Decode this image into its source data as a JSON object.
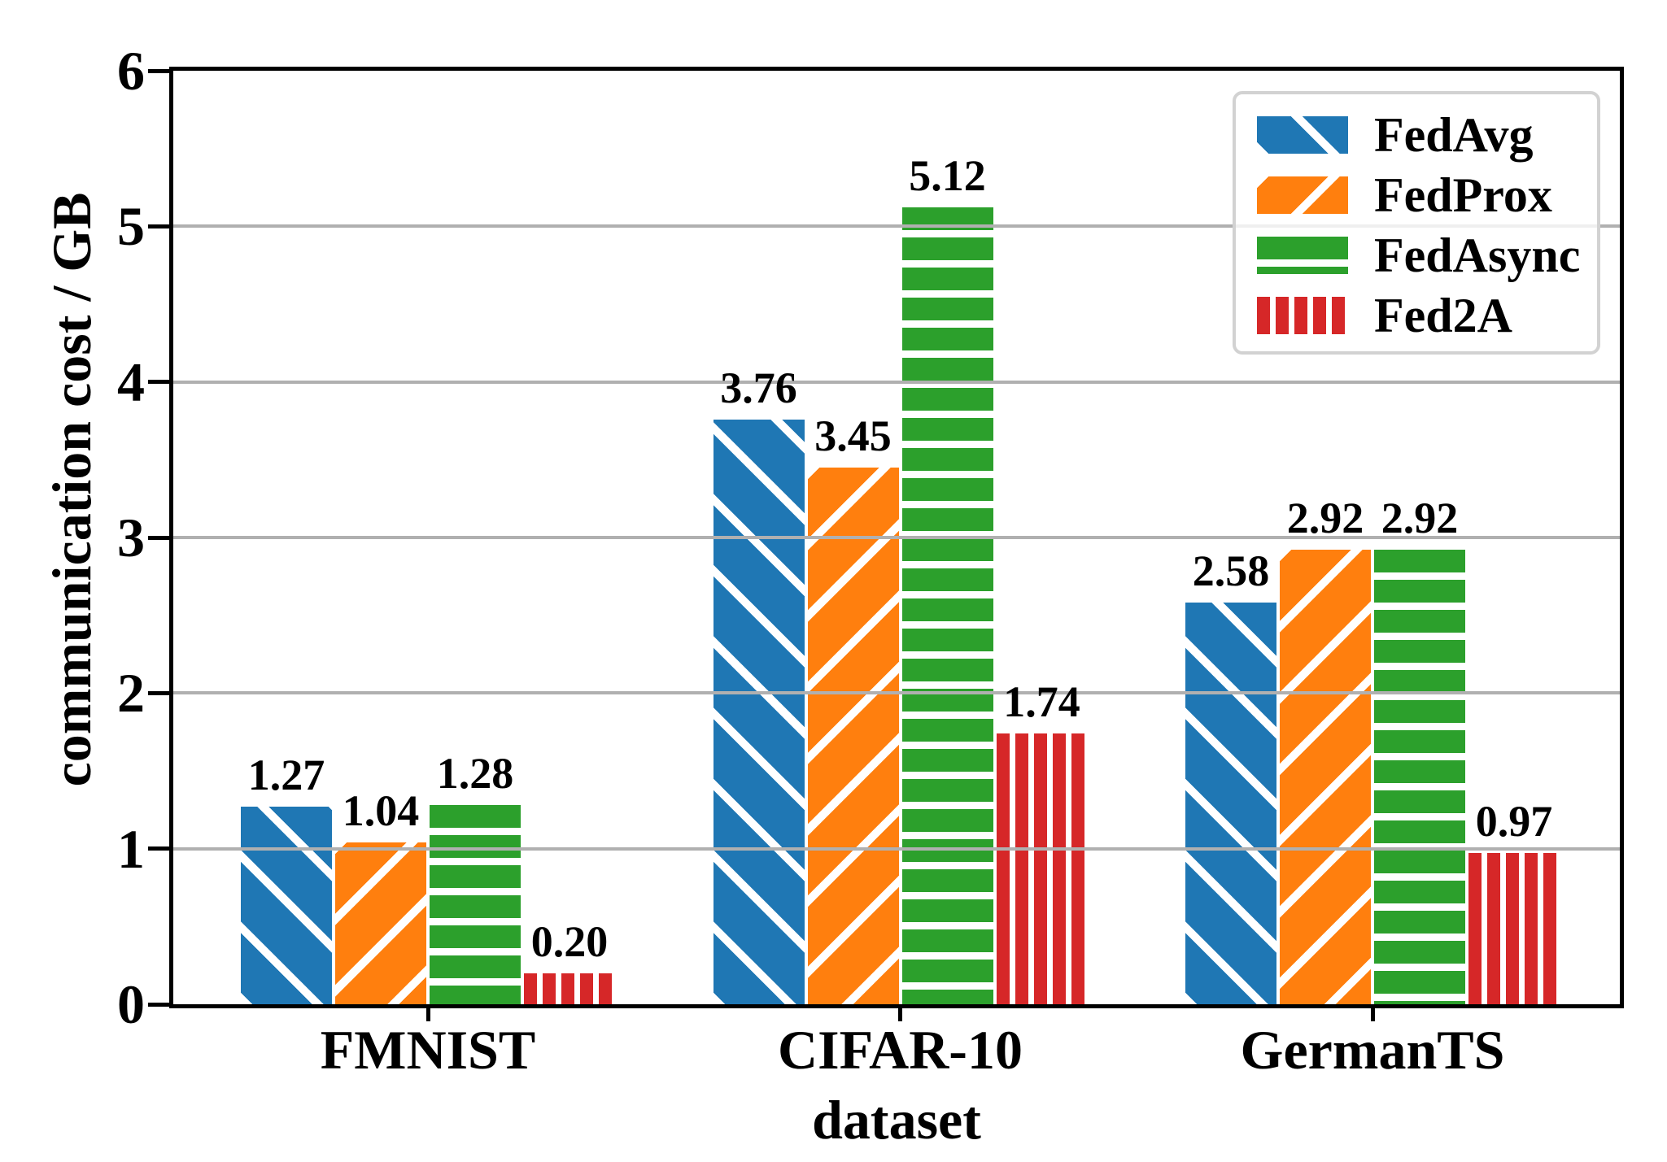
{
  "figure": {
    "xlabel": "dataset",
    "ylabel": "communication cost / GB"
  },
  "chart_data": {
    "type": "bar",
    "title": "",
    "xlabel": "dataset",
    "ylabel": "communication cost / GB",
    "categories": [
      "FMNIST",
      "CIFAR-10",
      "GermanTS"
    ],
    "series": [
      {
        "name": "FedAvg",
        "color": "#1f77b4",
        "hatch": "\\",
        "values": [
          1.27,
          3.76,
          2.58
        ]
      },
      {
        "name": "FedProx",
        "color": "#ff7f0e",
        "hatch": "/",
        "values": [
          1.04,
          3.45,
          2.92
        ]
      },
      {
        "name": "FedAsync",
        "color": "#2ca02c",
        "hatch": "-",
        "values": [
          1.28,
          5.12,
          2.92
        ]
      },
      {
        "name": "Fed2A",
        "color": "#d62728",
        "hatch": "|",
        "values": [
          0.2,
          1.74,
          0.97
        ]
      }
    ],
    "bar_value_labels": [
      [
        "1.27",
        "3.76",
        "2.58"
      ],
      [
        "1.04",
        "3.45",
        "2.92"
      ],
      [
        "1.28",
        "5.12",
        "2.92"
      ],
      [
        "0.20",
        "1.74",
        "0.97"
      ]
    ],
    "ylim": [
      0,
      6
    ],
    "yticks": [
      0,
      1,
      2,
      3,
      4,
      5,
      6
    ],
    "grid": true,
    "grid_color": "#b0b0b0",
    "hatch_color": "#ffffff",
    "legend_position": "upper right",
    "legend_border_color": "#d2d2d2"
  }
}
